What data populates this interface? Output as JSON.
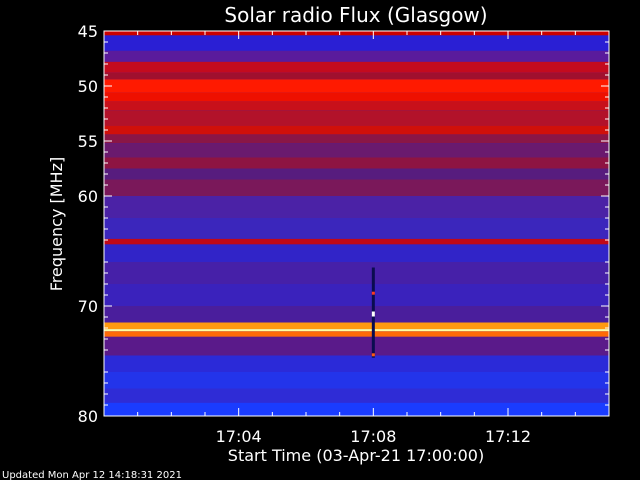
{
  "chart_data": {
    "type": "heatmap",
    "title": "Solar radio Flux (Glasgow)",
    "xlabel": "Start Time (03-Apr-21 17:00:00)",
    "ylabel": "Frequency [MHz]",
    "x_unit": "minutes after 17:00",
    "xlim": [
      0,
      15
    ],
    "ylim": [
      45,
      80
    ],
    "y_inverted": true,
    "x_ticks": [
      {
        "value": 4,
        "label": "17:04"
      },
      {
        "value": 8,
        "label": "17:08"
      },
      {
        "value": 12,
        "label": "17:12"
      }
    ],
    "y_ticks": [
      {
        "value": 45,
        "label": "45"
      },
      {
        "value": 50,
        "label": "50"
      },
      {
        "value": 55,
        "label": "55"
      },
      {
        "value": 60,
        "label": "60"
      },
      {
        "value": 70,
        "label": "70"
      },
      {
        "value": 80,
        "label": "80"
      }
    ],
    "bands": [
      {
        "from": 45.0,
        "to": 45.4,
        "color": "#cc0000"
      },
      {
        "from": 45.4,
        "to": 46.8,
        "color": "#2a1fd4"
      },
      {
        "from": 46.8,
        "to": 47.8,
        "color": "#5a1b9c"
      },
      {
        "from": 47.8,
        "to": 48.8,
        "color": "#c40b1e"
      },
      {
        "from": 48.8,
        "to": 49.4,
        "color": "#a0102e"
      },
      {
        "from": 49.4,
        "to": 50.6,
        "color": "#ff1a00"
      },
      {
        "from": 50.6,
        "to": 51.4,
        "color": "#ee1000"
      },
      {
        "from": 51.4,
        "to": 52.2,
        "color": "#c8101a"
      },
      {
        "from": 52.2,
        "to": 53.6,
        "color": "#b2122a"
      },
      {
        "from": 53.6,
        "to": 54.4,
        "color": "#d0100a"
      },
      {
        "from": 54.4,
        "to": 55.2,
        "color": "#8a1646"
      },
      {
        "from": 55.2,
        "to": 56.5,
        "color": "#6a1a6e"
      },
      {
        "from": 56.5,
        "to": 57.5,
        "color": "#8e1442"
      },
      {
        "from": 57.5,
        "to": 58.5,
        "color": "#571c7e"
      },
      {
        "from": 58.5,
        "to": 60.0,
        "color": "#7a185a"
      },
      {
        "from": 60.0,
        "to": 62.0,
        "color": "#4b22a6"
      },
      {
        "from": 62.0,
        "to": 63.9,
        "color": "#3b26bc"
      },
      {
        "from": 63.9,
        "to": 64.4,
        "color": "#c00818"
      },
      {
        "from": 64.4,
        "to": 66.0,
        "color": "#3124c8"
      },
      {
        "from": 66.0,
        "to": 68.0,
        "color": "#4620a8"
      },
      {
        "from": 68.0,
        "to": 70.0,
        "color": "#3a22bc"
      },
      {
        "from": 70.0,
        "to": 71.5,
        "color": "#4a1e9c"
      },
      {
        "from": 71.5,
        "to": 72.1,
        "color": "#ff9a10"
      },
      {
        "from": 72.1,
        "to": 72.3,
        "color": "#ffffa0"
      },
      {
        "from": 72.3,
        "to": 72.8,
        "color": "#ff6a06"
      },
      {
        "from": 72.8,
        "to": 74.5,
        "color": "#5a1a8a"
      },
      {
        "from": 74.5,
        "to": 76.0,
        "color": "#2b2ad8"
      },
      {
        "from": 76.0,
        "to": 77.5,
        "color": "#2334ea"
      },
      {
        "from": 77.5,
        "to": 78.8,
        "color": "#2f2cd6"
      },
      {
        "from": 78.8,
        "to": 80.0,
        "color": "#1a3cff"
      }
    ],
    "burst": {
      "x": 8.0,
      "from": 66.5,
      "to": 74.7
    }
  },
  "footer": {
    "updated": "Updated Mon Apr 12 14:18:31 2021"
  }
}
